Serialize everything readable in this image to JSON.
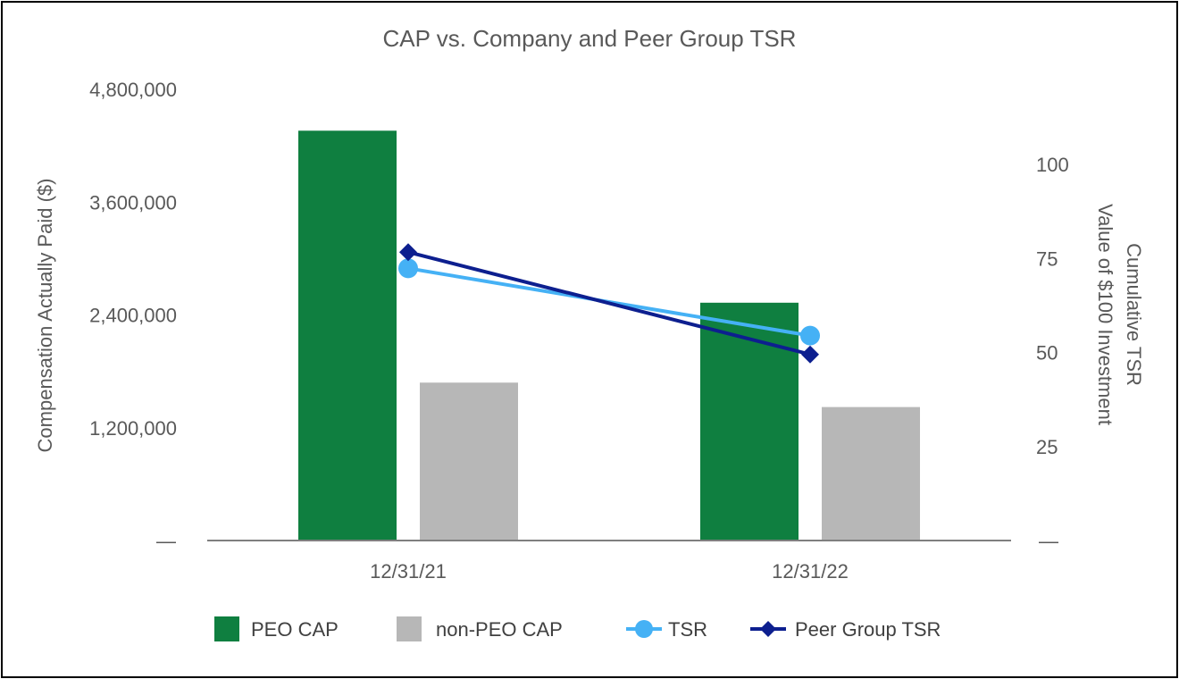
{
  "chart_data": {
    "type": "bar",
    "title": "CAP vs. Company and Peer Group TSR",
    "categories": [
      "12/31/21",
      "12/31/22"
    ],
    "ylabel": "Compensation Actually Paid ($)",
    "y2label": [
      "Cumulative TSR",
      "Value of $100 Investment"
    ],
    "ylim": [
      0,
      4800000
    ],
    "y2lim": [
      0,
      120
    ],
    "yticks": [
      {
        "value": 4800000,
        "label": "4,800,000"
      },
      {
        "value": 3600000,
        "label": "3,600,000"
      },
      {
        "value": 2400000,
        "label": "2,400,000"
      },
      {
        "value": 1200000,
        "label": "1,200,000"
      },
      {
        "value": 0,
        "label": "—"
      }
    ],
    "y2ticks": [
      {
        "value": 100,
        "label": "100"
      },
      {
        "value": 75,
        "label": "75"
      },
      {
        "value": 50,
        "label": "50"
      },
      {
        "value": 25,
        "label": "25"
      },
      {
        "value": 0,
        "label": "—"
      }
    ],
    "bar_series": [
      {
        "name": "PEO CAP",
        "color": "#0f7f40",
        "values": [
          4360000,
          2530000
        ]
      },
      {
        "name": "non-PEO CAP",
        "color": "#b7b7b7",
        "values": [
          1680000,
          1420000
        ]
      }
    ],
    "line_series": [
      {
        "name": "TSR",
        "color": "#45b1f5",
        "marker": "circle",
        "values": [
          72.4,
          54.5
        ]
      },
      {
        "name": "Peer Group TSR",
        "color": "#0d1f8f",
        "marker": "diamond",
        "values": [
          76.7,
          49.5
        ]
      }
    ],
    "legend": [
      "PEO CAP",
      "non-PEO CAP",
      "TSR",
      "Peer Group TSR"
    ],
    "legend_position": "bottom"
  }
}
